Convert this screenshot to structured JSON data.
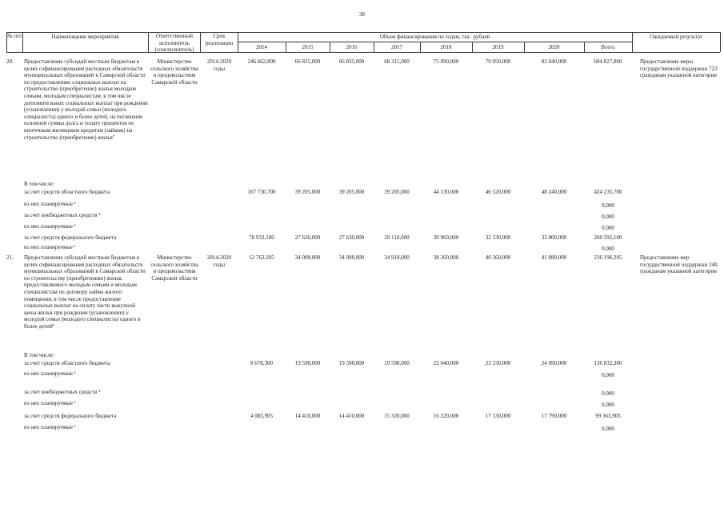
{
  "page_number": "38",
  "header": {
    "num": "№ п/п",
    "name": "Наименование мероприятия",
    "executor": "Ответственный исполнитель (соисполнитель)",
    "term": "Срок реализации",
    "funding": "Объем финансирования по годам, тыс. рублей",
    "years": [
      "2014",
      "2015",
      "2016",
      "2017",
      "2018",
      "2019",
      "2020",
      "Всего"
    ],
    "result": "Ожидаемый результат"
  },
  "items": [
    {
      "num": "20.",
      "name": "Предоставление субсидий местным бюджетам в целях софинансирования расходных обязательств муниципальных образований в Самарской области по предоставлению социальных выплат на строительство (приобретение) жилья молодым семьям, молодым специалистам, в том числе дополнительных социальных выплат при рождении (усыновлении) у молодой семьи (молодого специалиста) одного и более детей, на погашение основной суммы долга и уплату процентов по ипотечным жилищным кредитам (займам) на строительство (приобретение) жилья⁷",
      "executor": "Министерство сельского хозяйства и продовольствия Самарской области",
      "term": "2014-2020 годы",
      "values": [
        "246 662,800",
        "66 835,000",
        "66 835,000",
        "68 315,000",
        "75 090,000",
        "79 050,000",
        "82 040,000",
        "684 827,800"
      ],
      "result": "Предоставление меры государственной поддержки 723 гражданам указанной категории",
      "including": "В том числе:",
      "sources": [
        {
          "label": "за счет средств областного бюджета",
          "values": [
            "167 730,700",
            "39 205,000",
            "39 205,000",
            "39 205,000",
            "44 130,000",
            "46 520,000",
            "48 240,000",
            "424 235,700"
          ]
        },
        {
          "label": "из них планируемые ¹",
          "total": "0,000"
        },
        {
          "label": "за счет внебюджетных средств ²",
          "total": "0,000"
        },
        {
          "label": "из них планируемые ¹",
          "total": "0,000"
        },
        {
          "label": "за счет средств федерального бюджета",
          "values": [
            "78 932,100",
            "27 630,000",
            "27 630,000",
            "29 110,000",
            "30 960,000",
            "32 530,000",
            "33 800,000",
            "260 592,100"
          ]
        },
        {
          "label": "из них планируемые ¹",
          "total": "0,000"
        }
      ]
    },
    {
      "num": "21.",
      "name": "Предоставление субсидий местным бюджетам в целях софинансирования расходных обязательств муниципальных образований в Самарской области по строительству (приобретению) жилья, предоставляемого молодым семьям и молодым специалистам по договору найма жилого помещения, в том числе предоставление социальных выплат на оплату части выкупной цены жилья при рождении (усыновлении) у молодой семьи (молодого специалиста) одного и более детей⁸",
      "executor": "Министерство сельского хозяйства и продовольствия Самарской области",
      "term": "2014-2020 годы",
      "values": [
        "12 762,205",
        "34 008,000",
        "34 008,000",
        "34 918,000",
        "38 260,000",
        "40 360,000",
        "41 880,000",
        "236 196,205"
      ],
      "result": "Предоставление мер государственной поддержки 240 гражданам указанной категории",
      "including": "В том числе:",
      "sources": [
        {
          "label": "за счет средств областного бюджета",
          "values": [
            "8 678,300",
            "19 598,000",
            "19 598,000",
            "19 598,000",
            "22 040,000",
            "23 230,000",
            "24 090,000",
            "136 832,300"
          ]
        },
        {
          "label": "из них планируемые ¹",
          "total": "0,000"
        },
        {
          "label": "за счет внебюджетных средств ²",
          "total": "0,000"
        },
        {
          "label": "из них планируемые ¹",
          "total": "0,000"
        },
        {
          "label": "за счет средств федерального бюджета",
          "values": [
            "4 083,905",
            "14 410,000",
            "14 410,000",
            "15 320,000",
            "16 220,000",
            "17 130,000",
            "17 790,000",
            "99 363,905"
          ]
        },
        {
          "label": "из них планируемые ¹",
          "total": "0,000"
        }
      ]
    }
  ]
}
